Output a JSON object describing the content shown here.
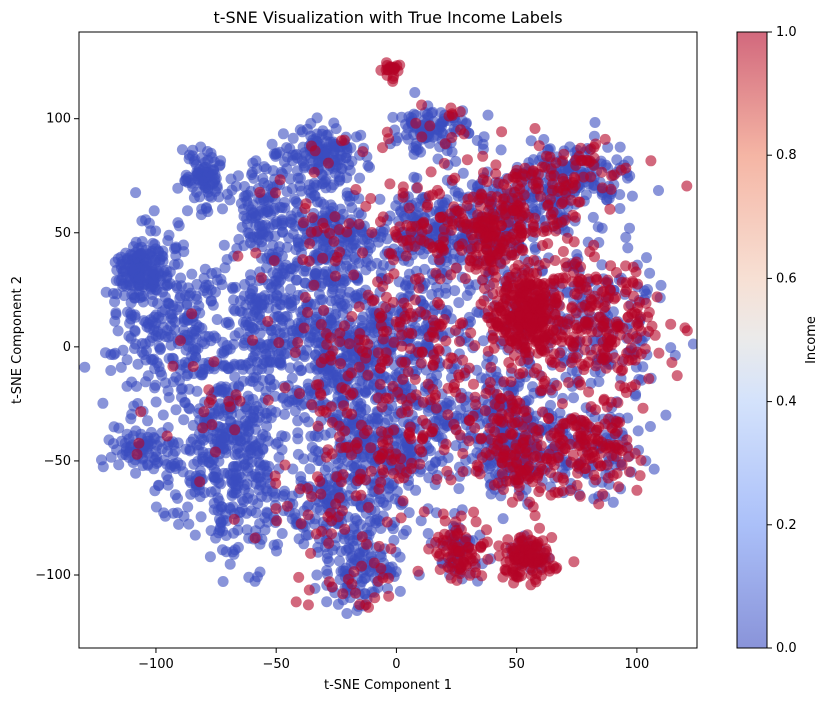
{
  "chart_data": {
    "type": "scatter",
    "title": "t-SNE Visualization with True Income Labels",
    "xlabel": "t-SNE Component 1",
    "ylabel": "t-SNE Component 2",
    "xlim": [
      -132,
      125
    ],
    "ylim": [
      -132,
      138
    ],
    "xticks": [
      -100,
      -50,
      0,
      50,
      100
    ],
    "yticks": [
      -100,
      -50,
      0,
      50,
      100
    ],
    "grid": false,
    "colormap": {
      "name": "coolwarm",
      "label": "Income",
      "range": [
        0,
        1
      ],
      "ticks": [
        0.0,
        0.2,
        0.4,
        0.6,
        0.8,
        1.0
      ],
      "low_color": "#3b4cc0",
      "mid_color": "#dddddd",
      "high_color": "#b40426"
    },
    "point_alpha": 0.6,
    "clusters": [
      {
        "cx": -105,
        "cy": 35,
        "rx": 10,
        "ry": 12,
        "n": 140,
        "income_fraction": 0.0
      },
      {
        "cx": -80,
        "cy": 75,
        "rx": 8,
        "ry": 12,
        "n": 90,
        "income_fraction": 0.0
      },
      {
        "cx": -95,
        "cy": 10,
        "rx": 25,
        "ry": 30,
        "n": 260,
        "income_fraction": 0.03
      },
      {
        "cx": -105,
        "cy": -45,
        "rx": 12,
        "ry": 12,
        "n": 90,
        "income_fraction": 0.04
      },
      {
        "cx": -70,
        "cy": -45,
        "rx": 22,
        "ry": 40,
        "n": 420,
        "income_fraction": 0.05
      },
      {
        "cx": -55,
        "cy": 10,
        "rx": 18,
        "ry": 30,
        "n": 200,
        "income_fraction": 0.06
      },
      {
        "cx": -55,
        "cy": 60,
        "rx": 10,
        "ry": 25,
        "n": 120,
        "income_fraction": 0.02
      },
      {
        "cx": -30,
        "cy": 45,
        "rx": 18,
        "ry": 25,
        "n": 260,
        "income_fraction": 0.08
      },
      {
        "cx": -30,
        "cy": 85,
        "rx": 15,
        "ry": 12,
        "n": 140,
        "income_fraction": 0.05
      },
      {
        "cx": -25,
        "cy": -10,
        "rx": 25,
        "ry": 35,
        "n": 380,
        "income_fraction": 0.12
      },
      {
        "cx": -25,
        "cy": -70,
        "rx": 25,
        "ry": 25,
        "n": 260,
        "income_fraction": 0.15
      },
      {
        "cx": -15,
        "cy": -100,
        "rx": 15,
        "ry": 15,
        "n": 120,
        "income_fraction": 0.18
      },
      {
        "cx": -2,
        "cy": 122,
        "rx": 4,
        "ry": 3,
        "n": 20,
        "income_fraction": 1.0
      },
      {
        "cx": 15,
        "cy": 95,
        "rx": 15,
        "ry": 10,
        "n": 120,
        "income_fraction": 0.12
      },
      {
        "cx": 15,
        "cy": 50,
        "rx": 25,
        "ry": 20,
        "n": 300,
        "income_fraction": 0.35
      },
      {
        "cx": 5,
        "cy": 0,
        "rx": 30,
        "ry": 30,
        "n": 420,
        "income_fraction": 0.3
      },
      {
        "cx": 0,
        "cy": -45,
        "rx": 25,
        "ry": 20,
        "n": 260,
        "income_fraction": 0.25
      },
      {
        "cx": 45,
        "cy": -30,
        "rx": 25,
        "ry": 25,
        "n": 300,
        "income_fraction": 0.25
      },
      {
        "cx": 55,
        "cy": 15,
        "rx": 14,
        "ry": 18,
        "n": 320,
        "income_fraction": 0.92
      },
      {
        "cx": 50,
        "cy": 60,
        "rx": 25,
        "ry": 20,
        "n": 280,
        "income_fraction": 0.5
      },
      {
        "cx": 40,
        "cy": 45,
        "rx": 12,
        "ry": 15,
        "n": 140,
        "income_fraction": 0.6
      },
      {
        "cx": 75,
        "cy": 75,
        "rx": 22,
        "ry": 15,
        "n": 200,
        "income_fraction": 0.3
      },
      {
        "cx": 85,
        "cy": 10,
        "rx": 25,
        "ry": 30,
        "n": 380,
        "income_fraction": 0.55
      },
      {
        "cx": 80,
        "cy": -45,
        "rx": 20,
        "ry": 18,
        "n": 220,
        "income_fraction": 0.55
      },
      {
        "cx": 50,
        "cy": -50,
        "rx": 15,
        "ry": 15,
        "n": 160,
        "income_fraction": 0.45
      },
      {
        "cx": 27,
        "cy": -88,
        "rx": 10,
        "ry": 12,
        "n": 130,
        "income_fraction": 0.55
      },
      {
        "cx": 55,
        "cy": -93,
        "rx": 10,
        "ry": 9,
        "n": 130,
        "income_fraction": 0.8
      }
    ]
  }
}
